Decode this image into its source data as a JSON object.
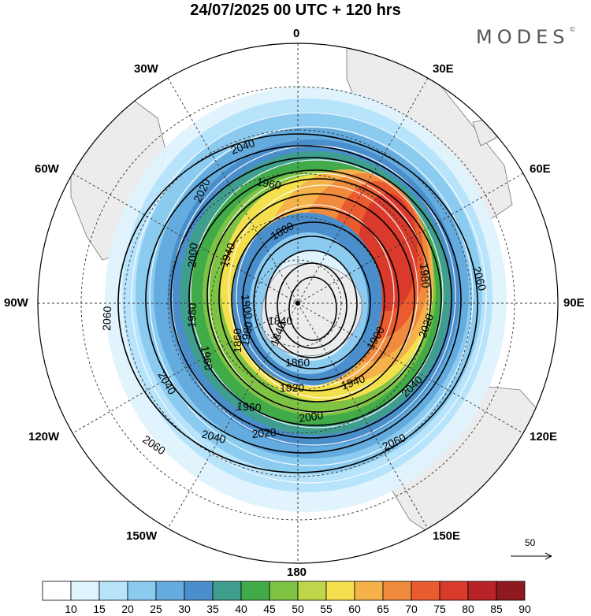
{
  "title": "24/07/2025  00 UTC  + 120 hrs",
  "logo": "MODES",
  "logo_mark": "©",
  "longitude_labels": {
    "n0": "0",
    "e30": "30E",
    "e60": "60E",
    "e90": "90E",
    "e120": "120E",
    "e150": "150E",
    "s180": "180",
    "w150": "150W",
    "w120": "120W",
    "w90": "90W",
    "w60": "60W",
    "w30": "30W"
  },
  "contour_labels": [
    "2060",
    "2060",
    "2060",
    "2060",
    "2040",
    "2040",
    "2040",
    "2040",
    "2020",
    "2020",
    "2020",
    "2000",
    "2000",
    "1980",
    "1980",
    "1980",
    "1960",
    "1960",
    "1960",
    "1940",
    "1940",
    "1920",
    "1900",
    "1900",
    "1880",
    "1860",
    "1860",
    "1840",
    "1840"
  ],
  "reference_vector": {
    "label": "50"
  },
  "colorbar": {
    "ticks": [
      "10",
      "15",
      "20",
      "25",
      "30",
      "35",
      "40",
      "45",
      "50",
      "55",
      "60",
      "65",
      "70",
      "75",
      "80",
      "85",
      "90"
    ],
    "colors": [
      "#ffffff",
      "#dff3fd",
      "#b7e3fb",
      "#8ccbf0",
      "#64acdf",
      "#4a8fcc",
      "#3f9e8e",
      "#41ab4a",
      "#7fc344",
      "#bed74a",
      "#f4e04d",
      "#f5b24a",
      "#f08b3e",
      "#ea5b2f",
      "#d93a2b",
      "#b72327",
      "#8e1a20"
    ]
  },
  "colors": {
    "land": "#ececec",
    "coast": "#777777",
    "contour": "#000000",
    "wind_vector": "#ffffff"
  }
}
